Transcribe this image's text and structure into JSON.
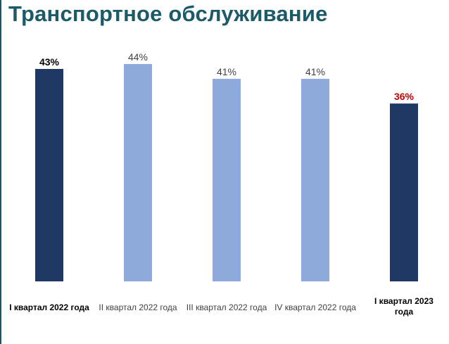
{
  "title": "Транспортное обслуживание",
  "colors": {
    "title": "#1d5a68",
    "bar_highlight": "#203864",
    "bar_normal": "#8eaadb",
    "value_red": "#c00000",
    "text_dark": "#000000",
    "text_grey": "#404040"
  },
  "chart_data": {
    "type": "bar",
    "title": "Транспортное обслуживание",
    "xlabel": "",
    "ylabel": "",
    "ylim": [
      0,
      46
    ],
    "grid": false,
    "categories": [
      "I квартал 2022 года",
      "II квартал 2022 года",
      "III квартал 2022 года",
      "IV квартал 2022 года",
      "I квартал 2023 года"
    ],
    "category_label_lines": [
      [
        "I квартал 2022 года"
      ],
      [
        "II квартал 2022 года"
      ],
      [
        "III квартал 2022 года"
      ],
      [
        "IV квартал 2022 года"
      ],
      [
        "I квартал 2023",
        "года"
      ]
    ],
    "values": [
      43,
      44,
      41,
      41,
      36
    ],
    "data_labels": [
      "43%",
      "44%",
      "41%",
      "41%",
      "36%"
    ],
    "bar_colors": [
      "#203864",
      "#8eaadb",
      "#8eaadb",
      "#8eaadb",
      "#203864"
    ],
    "data_label_colors": [
      "#000000",
      "#404040",
      "#404040",
      "#404040",
      "#c00000"
    ],
    "data_label_bold": [
      true,
      false,
      false,
      false,
      true
    ],
    "category_label_bold": [
      true,
      false,
      false,
      false,
      true
    ]
  }
}
